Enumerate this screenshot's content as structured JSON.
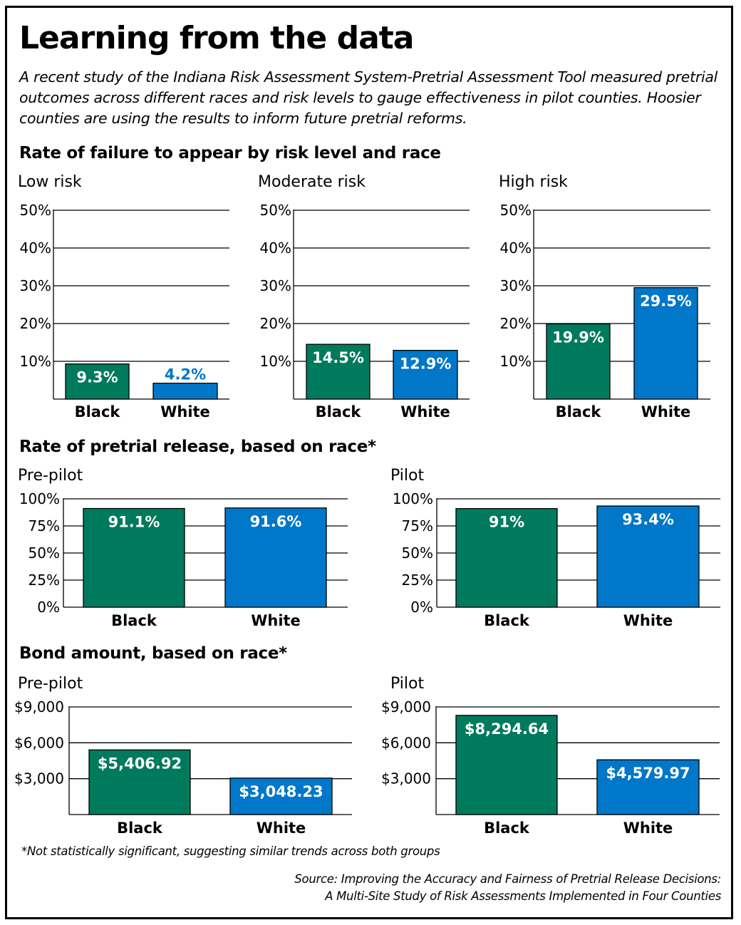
{
  "title": "Learning from the data",
  "intro": "A recent study of the Indiana Risk Assessment System-Pretrial Assessment Tool measured pretrial outcomes across different races and risk levels to gauge effectiveness in pilot counties. Hoosier counties are using the results to inform future pretrial reforms.",
  "sections": {
    "fta": "Rate of failure to appear by risk level and race",
    "release": "Rate of pretrial release, based on race*",
    "bond": "Bond amount, based on race*"
  },
  "footnote": "*Not statistically significant, suggesting similar trends across both groups",
  "source": {
    "line1": "Source: Improving the Accuracy and Fairness of Pretrial Release Decisions:",
    "line2": "A Multi-Site Study of Risk Assessments Implemented in Four Counties"
  },
  "colors": {
    "black_series": "#007a5c",
    "white_series": "#0077c8"
  },
  "chart_data": [
    {
      "type": "bar",
      "group": "fta",
      "title": "Low risk",
      "categories": [
        "Black",
        "White"
      ],
      "values": [
        9.3,
        4.2
      ],
      "labels": [
        "9.3%",
        "4.2%"
      ],
      "ylim": [
        0,
        50
      ],
      "yticks": [
        10,
        20,
        30,
        40,
        50
      ],
      "ytick_labels": [
        "10%",
        "20%",
        "30%",
        "40%",
        "50%"
      ],
      "grid": true
    },
    {
      "type": "bar",
      "group": "fta",
      "title": "Moderate risk",
      "categories": [
        "Black",
        "White"
      ],
      "values": [
        14.5,
        12.9
      ],
      "labels": [
        "14.5%",
        "12.9%"
      ],
      "ylim": [
        0,
        50
      ],
      "yticks": [
        10,
        20,
        30,
        40,
        50
      ],
      "ytick_labels": [
        "10%",
        "20%",
        "30%",
        "40%",
        "50%"
      ],
      "grid": true
    },
    {
      "type": "bar",
      "group": "fta",
      "title": "High risk",
      "categories": [
        "Black",
        "White"
      ],
      "values": [
        19.9,
        29.5
      ],
      "labels": [
        "19.9%",
        "29.5%"
      ],
      "ylim": [
        0,
        50
      ],
      "yticks": [
        10,
        20,
        30,
        40,
        50
      ],
      "ytick_labels": [
        "10%",
        "20%",
        "30%",
        "40%",
        "50%"
      ],
      "grid": true
    },
    {
      "type": "bar",
      "group": "release",
      "title": "Pre-pilot",
      "categories": [
        "Black",
        "White"
      ],
      "values": [
        91.1,
        91.6
      ],
      "labels": [
        "91.1%",
        "91.6%"
      ],
      "ylim": [
        0,
        100
      ],
      "yticks": [
        0,
        25,
        50,
        75,
        100
      ],
      "ytick_labels": [
        "0%",
        "25%",
        "50%",
        "75%",
        "100%"
      ],
      "grid": true
    },
    {
      "type": "bar",
      "group": "release",
      "title": "Pilot",
      "categories": [
        "Black",
        "White"
      ],
      "values": [
        91,
        93.4
      ],
      "labels": [
        "91%",
        "93.4%"
      ],
      "ylim": [
        0,
        100
      ],
      "yticks": [
        0,
        25,
        50,
        75,
        100
      ],
      "ytick_labels": [
        "0%",
        "25%",
        "50%",
        "75%",
        "100%"
      ],
      "grid": true
    },
    {
      "type": "bar",
      "group": "bond",
      "title": "Pre-pilot",
      "categories": [
        "Black",
        "White"
      ],
      "values": [
        5406.92,
        3048.23
      ],
      "labels": [
        "$5,406.92",
        "$3,048.23"
      ],
      "ylim": [
        0,
        9000
      ],
      "yticks": [
        3000,
        6000,
        9000
      ],
      "ytick_labels": [
        "$3,000",
        "$6,000",
        "$9,000"
      ],
      "grid": true
    },
    {
      "type": "bar",
      "group": "bond",
      "title": "Pilot",
      "categories": [
        "Black",
        "White"
      ],
      "values": [
        8294.64,
        4579.97
      ],
      "labels": [
        "$8,294.64",
        "$4,579.97"
      ],
      "ylim": [
        0,
        9000
      ],
      "yticks": [
        3000,
        6000,
        9000
      ],
      "ytick_labels": [
        "$3,000",
        "$6,000",
        "$9,000"
      ],
      "grid": true
    }
  ]
}
